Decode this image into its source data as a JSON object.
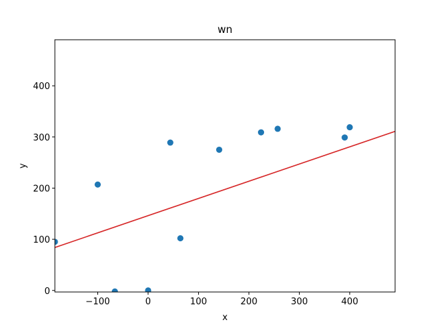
{
  "chart_data": {
    "type": "scatter",
    "title": "wn",
    "xlabel": "x",
    "ylabel": "y",
    "xlim": [
      -185,
      490
    ],
    "ylim": [
      -3,
      490
    ],
    "xticks": [
      -100,
      0,
      100,
      200,
      300,
      400
    ],
    "yticks": [
      0,
      100,
      200,
      300,
      400
    ],
    "grid": false,
    "legend": "none",
    "colors": {
      "points": "#1f77b4",
      "fit_line": "#d62728",
      "axes": "#000000",
      "background": "#ffffff"
    },
    "series": [
      {
        "type": "scatter",
        "points": [
          {
            "x": -185,
            "y": 95
          },
          {
            "x": -100,
            "y": 207
          },
          {
            "x": -66,
            "y": -2
          },
          {
            "x": 0,
            "y": 0
          },
          {
            "x": 44,
            "y": 289
          },
          {
            "x": 64,
            "y": 102
          },
          {
            "x": 141,
            "y": 275
          },
          {
            "x": 224,
            "y": 309
          },
          {
            "x": 257,
            "y": 316
          },
          {
            "x": 390,
            "y": 299
          },
          {
            "x": 400,
            "y": 319
          }
        ]
      },
      {
        "type": "line",
        "points": [
          {
            "x": -185,
            "y": 84
          },
          {
            "x": 490,
            "y": 311
          }
        ]
      }
    ]
  }
}
